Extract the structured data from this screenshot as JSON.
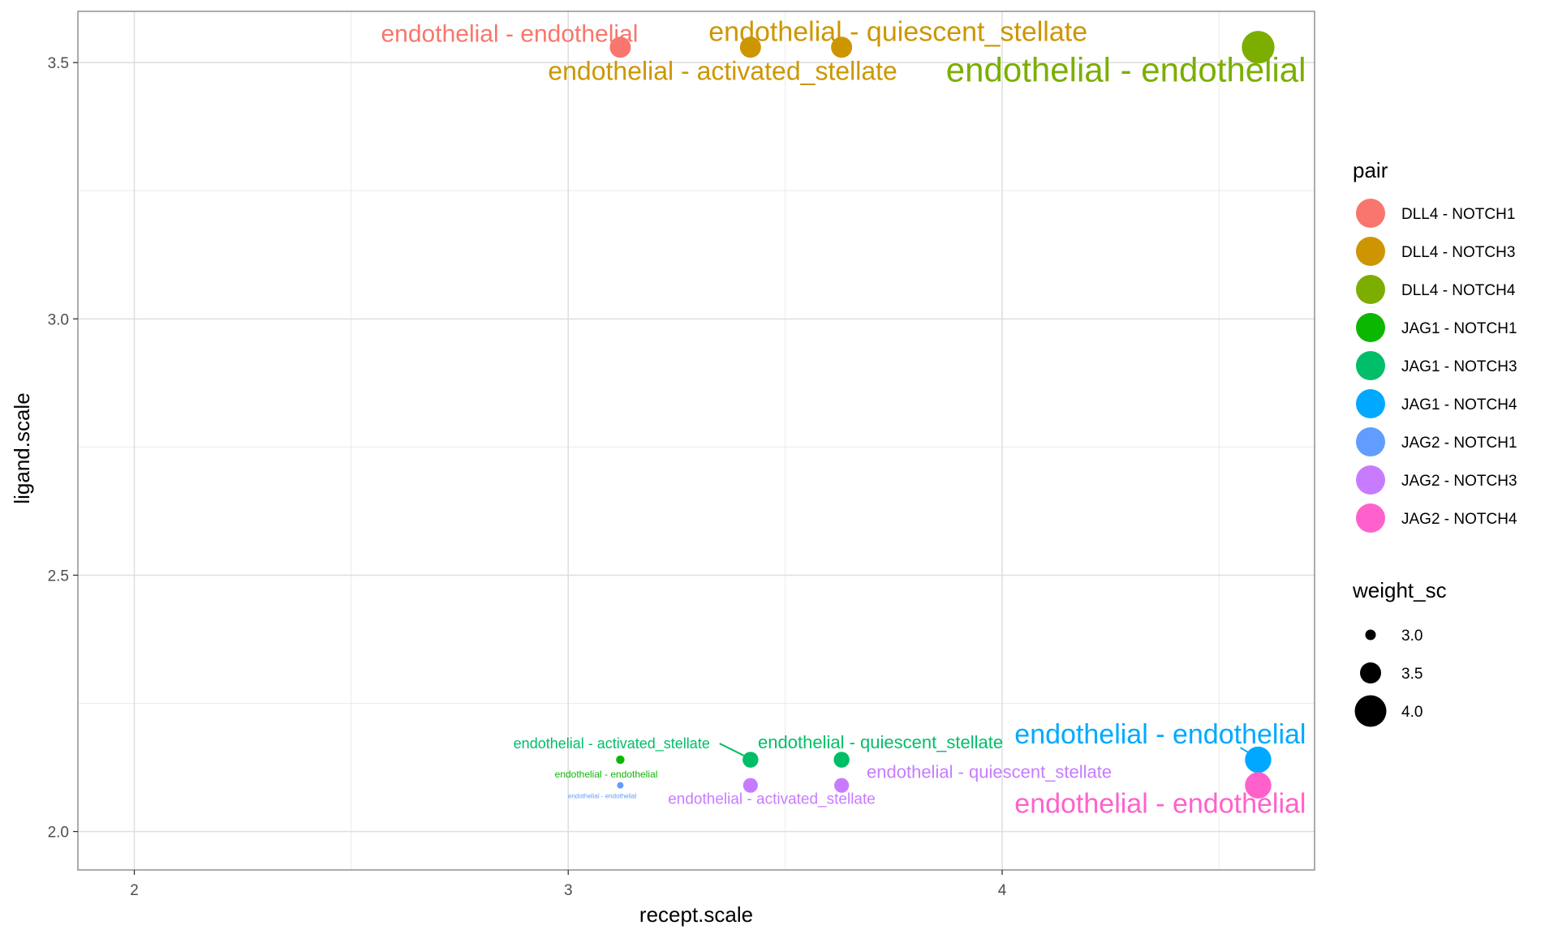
{
  "chart_data": {
    "type": "scatter",
    "title": "",
    "xlabel": "recept.scale",
    "ylabel": "ligand.scale",
    "xlim": [
      1.87,
      4.72
    ],
    "ylim": [
      1.925,
      3.6
    ],
    "x_ticks": [
      2,
      3,
      4
    ],
    "x_tick_labels": [
      "2",
      "3",
      "4"
    ],
    "x_minor": [
      2.5,
      3.5,
      4.5
    ],
    "y_ticks": [
      2.0,
      2.5,
      3.0,
      3.5
    ],
    "y_tick_labels": [
      "2.0",
      "2.5",
      "3.0",
      "3.5"
    ],
    "y_minor": [
      2.25,
      2.75,
      3.25
    ],
    "grid": true,
    "legend_position": "right",
    "pair_legend_title": "pair",
    "size_legend_title": "weight_sc",
    "size_legend": [
      {
        "label": "3.0",
        "value": 3.0
      },
      {
        "label": "3.5",
        "value": 3.5
      },
      {
        "label": "4.0",
        "value": 4.0
      }
    ],
    "series": [
      {
        "name": "DLL4 - NOTCH1",
        "color": "#F8766D"
      },
      {
        "name": "DLL4 - NOTCH3",
        "color": "#CD9600"
      },
      {
        "name": "DLL4 - NOTCH4",
        "color": "#7CAE00"
      },
      {
        "name": "JAG1 - NOTCH1",
        "color": "#0CB702"
      },
      {
        "name": "JAG1 - NOTCH3",
        "color": "#00BE67"
      },
      {
        "name": "JAG1 - NOTCH4",
        "color": "#00A9FF"
      },
      {
        "name": "JAG2 - NOTCH1",
        "color": "#619CFF"
      },
      {
        "name": "JAG2 - NOTCH3",
        "color": "#C77CFF"
      },
      {
        "name": "JAG2 - NOTCH4",
        "color": "#FF61CC"
      }
    ],
    "points": [
      {
        "pair": 0,
        "x": 3.12,
        "y": 3.53,
        "weight": 3.5,
        "label": "endothelial - endothelial"
      },
      {
        "pair": 1,
        "x": 3.42,
        "y": 3.53,
        "weight": 3.5,
        "label": "endothelial - activated_stellate"
      },
      {
        "pair": 1,
        "x": 3.63,
        "y": 3.53,
        "weight": 3.5,
        "label": "endothelial - quiescent_stellate"
      },
      {
        "pair": 2,
        "x": 4.59,
        "y": 3.53,
        "weight": 4.05,
        "label": "endothelial - endothelial"
      },
      {
        "pair": 3,
        "x": 3.12,
        "y": 2.14,
        "weight": 2.9,
        "label": "endothelial - endothelial"
      },
      {
        "pair": 4,
        "x": 3.42,
        "y": 2.14,
        "weight": 3.25,
        "label": "endothelial - activated_stellate"
      },
      {
        "pair": 4,
        "x": 3.63,
        "y": 2.14,
        "weight": 3.25,
        "label": "endothelial - quiescent_stellate"
      },
      {
        "pair": 5,
        "x": 4.59,
        "y": 2.14,
        "weight": 3.75,
        "label": "endothelial - endothelial"
      },
      {
        "pair": 6,
        "x": 3.12,
        "y": 2.09,
        "weight": 2.7,
        "label": "endothelial - endothelial"
      },
      {
        "pair": 7,
        "x": 3.42,
        "y": 2.09,
        "weight": 3.2,
        "label": "endothelial - activated_stellate"
      },
      {
        "pair": 7,
        "x": 3.63,
        "y": 2.09,
        "weight": 3.2,
        "label": "endothelial - quiescent_stellate"
      },
      {
        "pair": 8,
        "x": 4.59,
        "y": 2.09,
        "weight": 3.75,
        "label": "endothelial - endothelial"
      }
    ]
  }
}
